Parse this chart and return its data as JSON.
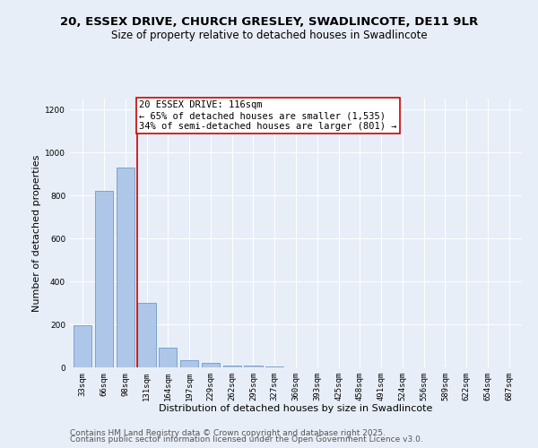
{
  "title": "20, ESSEX DRIVE, CHURCH GRESLEY, SWADLINCOTE, DE11 9LR",
  "subtitle": "Size of property relative to detached houses in Swadlincote",
  "xlabel": "Distribution of detached houses by size in Swadlincote",
  "ylabel": "Number of detached properties",
  "categories": [
    "33sqm",
    "66sqm",
    "98sqm",
    "131sqm",
    "164sqm",
    "197sqm",
    "229sqm",
    "262sqm",
    "295sqm",
    "327sqm",
    "360sqm",
    "393sqm",
    "425sqm",
    "458sqm",
    "491sqm",
    "524sqm",
    "556sqm",
    "589sqm",
    "622sqm",
    "654sqm",
    "687sqm"
  ],
  "values": [
    197,
    820,
    930,
    300,
    90,
    35,
    20,
    10,
    8,
    5,
    2,
    1,
    1,
    1,
    0,
    0,
    0,
    0,
    0,
    0,
    0
  ],
  "bar_color": "#aec6e8",
  "bar_edge_color": "#5a8fc0",
  "bar_edge_width": 0.5,
  "vline_color": "#cc0000",
  "annotation_text": "20 ESSEX DRIVE: 116sqm\n← 65% of detached houses are smaller (1,535)\n34% of semi-detached houses are larger (801) →",
  "annotation_box_color": "#ffffff",
  "annotation_box_edge_color": "#cc0000",
  "ylim": [
    0,
    1250
  ],
  "yticks": [
    0,
    200,
    400,
    600,
    800,
    1000,
    1200
  ],
  "bg_color": "#e8eef8",
  "plot_bg_color": "#e8eef8",
  "footer_line1": "Contains HM Land Registry data © Crown copyright and database right 2025.",
  "footer_line2": "Contains public sector information licensed under the Open Government Licence v3.0.",
  "title_fontsize": 9.5,
  "subtitle_fontsize": 8.5,
  "xlabel_fontsize": 8,
  "ylabel_fontsize": 8,
  "tick_fontsize": 6.5,
  "annotation_fontsize": 7.5,
  "footer_fontsize": 6.5
}
